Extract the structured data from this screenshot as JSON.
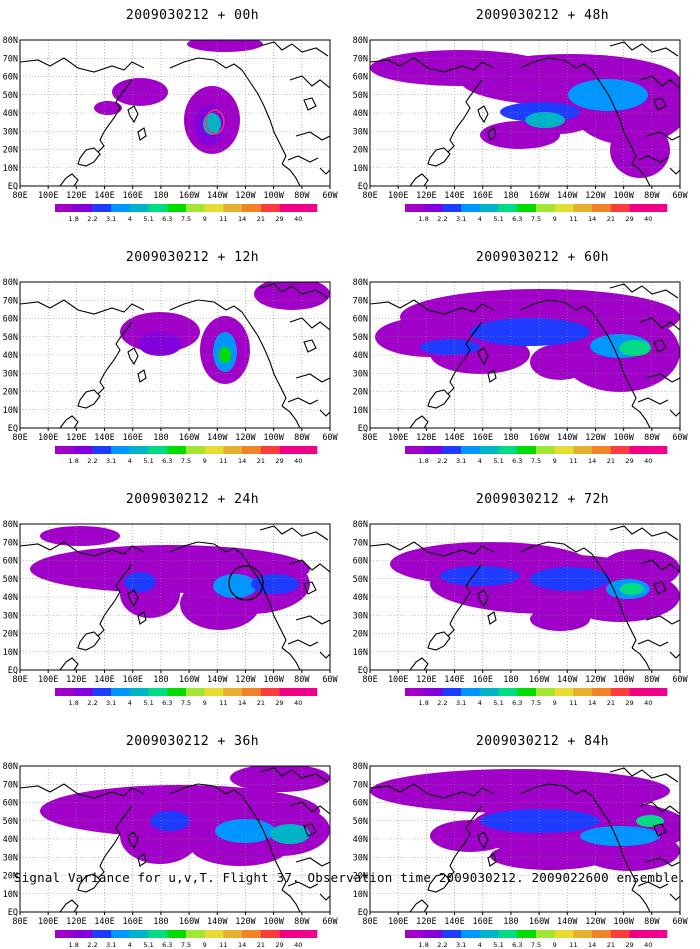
{
  "figure": {
    "footer": "Signal Variance for u,v,T. Flight 37. Observation time 2009030212. 2009022600 ensemble."
  },
  "axes": {
    "lon_labels": [
      "80E",
      "100E",
      "120E",
      "140E",
      "160E",
      "180",
      "160W",
      "140W",
      "120W",
      "100W",
      "80W",
      "60W"
    ],
    "lat_labels": [
      "80N",
      "70N",
      "60N",
      "50N",
      "40N",
      "30N",
      "20N",
      "10N",
      "EQ"
    ]
  },
  "colorbar": {
    "labels": [
      "1.8",
      "2.2",
      "3.1",
      "4",
      "5.1",
      "6.3",
      "7.5",
      "9",
      "11",
      "14",
      "21",
      "29",
      "40"
    ],
    "colors": [
      "#a000c8",
      "#8200dc",
      "#1e3cff",
      "#0096ff",
      "#00b4c8",
      "#00dc82",
      "#00dc00",
      "#a0e632",
      "#e6dc32",
      "#e6af2d",
      "#f08228",
      "#fa3c3c",
      "#f00082",
      "#f0008c"
    ]
  },
  "panels": [
    {
      "id": "p00",
      "title": "2009030212 + 00h",
      "col": 0,
      "row": 0
    },
    {
      "id": "p48",
      "title": "2009030212 + 48h",
      "col": 1,
      "row": 0
    },
    {
      "id": "p12",
      "title": "2009030212 + 12h",
      "col": 0,
      "row": 1
    },
    {
      "id": "p60",
      "title": "2009030212 + 60h",
      "col": 1,
      "row": 1
    },
    {
      "id": "p24",
      "title": "2009030212 + 24h",
      "col": 0,
      "row": 2
    },
    {
      "id": "p72",
      "title": "2009030212 + 72h",
      "col": 1,
      "row": 2
    },
    {
      "id": "p36",
      "title": "2009030212 + 36h",
      "col": 0,
      "row": 3
    },
    {
      "id": "p84",
      "title": "2009030212 + 84h",
      "col": 1,
      "row": 3
    }
  ]
}
